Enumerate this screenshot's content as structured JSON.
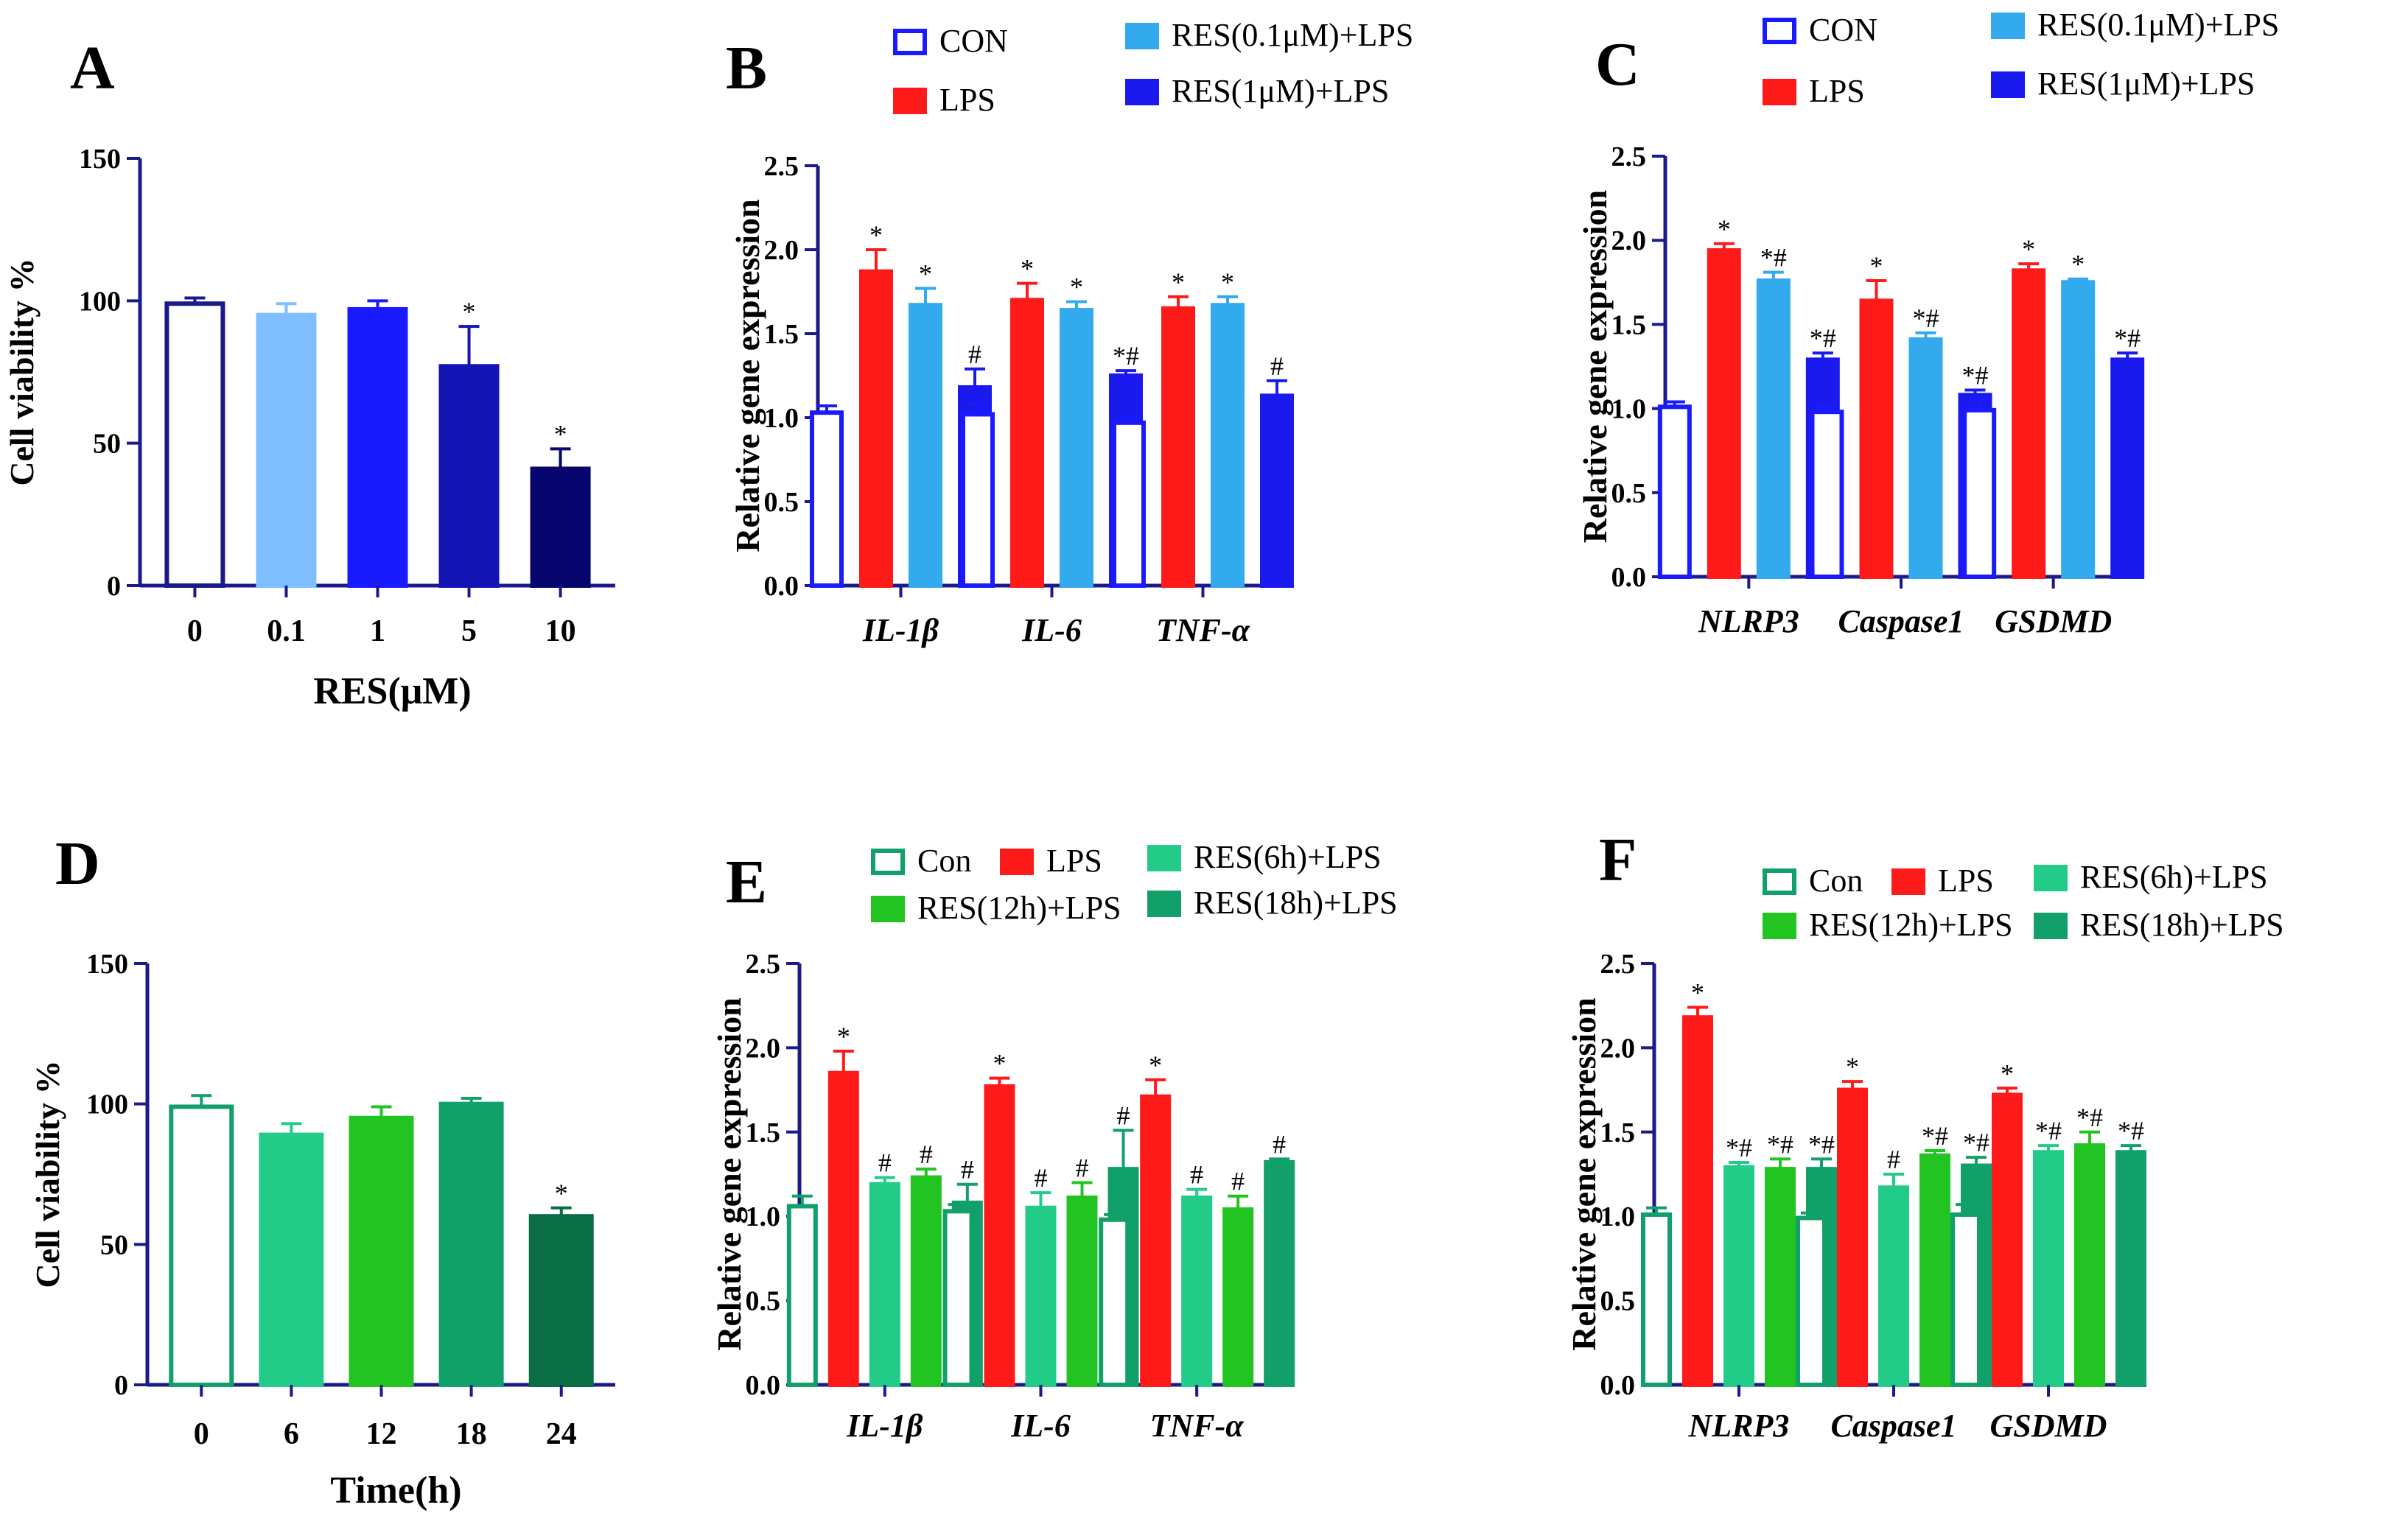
{
  "chart_data": [
    {
      "panel": "A",
      "type": "bar",
      "categories": [
        "0",
        "0.1",
        "1",
        "5",
        "10"
      ],
      "values": [
        99,
        95,
        97,
        77,
        41
      ],
      "errors": [
        2,
        4,
        3,
        14,
        7
      ],
      "annotations": [
        "",
        "",
        "",
        "*",
        "*"
      ],
      "bar_colors": [
        "#ffffff",
        "#7fbfff",
        "#1a1aff",
        "#1414b4",
        "#06066e"
      ],
      "bar_edge": "#1a1a8c",
      "xlabel": "RES(μM)",
      "ylabel": "Cell viability %",
      "ylim": [
        0,
        150
      ],
      "yticks": [
        "0",
        "50",
        "100",
        "150"
      ],
      "axis_color": "#1a1a8c"
    },
    {
      "panel": "B",
      "type": "bar",
      "categories": [
        "IL-1β",
        "IL-6",
        "TNF-α"
      ],
      "series": [
        {
          "name": "CON",
          "values": [
            1.03,
            1.02,
            0.97
          ],
          "errors": [
            0.04,
            0.06,
            0.03
          ],
          "annotations": [
            "",
            "",
            ""
          ],
          "color": "#ffffff",
          "edge": "#1a1aff"
        },
        {
          "name": "LPS",
          "values": [
            1.87,
            1.7,
            1.65
          ],
          "errors": [
            0.13,
            0.1,
            0.07
          ],
          "annotations": [
            "*",
            "*",
            "*"
          ],
          "color": "#ff1a1a",
          "edge": "#ff1a1a"
        },
        {
          "name": "RES(0.1μM)+LPS",
          "values": [
            1.67,
            1.64,
            1.67
          ],
          "errors": [
            0.1,
            0.05,
            0.05
          ],
          "annotations": [
            "*",
            "*",
            "*"
          ],
          "color": "#33aaee",
          "edge": "#33aaee"
        },
        {
          "name": "RES(1μM)+LPS",
          "values": [
            1.18,
            1.25,
            1.13
          ],
          "errors": [
            0.11,
            0.03,
            0.09
          ],
          "annotations": [
            "#",
            "*#",
            "#"
          ],
          "color": "#1a1aee",
          "edge": "#1a1aee"
        }
      ],
      "ylabel": "Relative gene expression",
      "ylim": [
        0,
        2.5
      ],
      "yticks": [
        "0.0",
        "0.5",
        "1.0",
        "1.5",
        "2.0",
        "2.5"
      ],
      "axis_color": "#1a1a8c"
    },
    {
      "panel": "C",
      "type": "bar",
      "categories": [
        "NLRP3",
        "Caspase1",
        "GSDMD"
      ],
      "series": [
        {
          "name": "CON",
          "values": [
            1.01,
            0.98,
            0.99
          ],
          "errors": [
            0.03,
            0.03,
            0.06
          ],
          "annotations": [
            "",
            "",
            ""
          ],
          "color": "#ffffff",
          "edge": "#1a1aff"
        },
        {
          "name": "LPS",
          "values": [
            1.94,
            1.64,
            1.82
          ],
          "errors": [
            0.04,
            0.12,
            0.04
          ],
          "annotations": [
            "*",
            "*",
            "*"
          ],
          "color": "#ff1a1a",
          "edge": "#ff1a1a"
        },
        {
          "name": "RES(0.1μM)+LPS",
          "values": [
            1.76,
            1.41,
            1.75
          ],
          "errors": [
            0.05,
            0.04,
            0.02
          ],
          "annotations": [
            "*#",
            "*#",
            "*"
          ],
          "color": "#33aaee",
          "edge": "#33aaee"
        },
        {
          "name": "RES(1μM)+LPS",
          "values": [
            1.29,
            1.08,
            1.29
          ],
          "errors": [
            0.04,
            0.03,
            0.04
          ],
          "annotations": [
            "*#",
            "*#",
            "*#"
          ],
          "color": "#1a1aee",
          "edge": "#1a1aee"
        }
      ],
      "ylabel": "Relative gene expression",
      "ylim": [
        0,
        2.5
      ],
      "yticks": [
        "0.0",
        "0.5",
        "1.0",
        "1.5",
        "2.0",
        "2.5"
      ],
      "axis_color": "#1a1a8c"
    },
    {
      "panel": "D",
      "type": "bar",
      "categories": [
        "0",
        "6",
        "12",
        "18",
        "24"
      ],
      "values": [
        99,
        89,
        95,
        100,
        60
      ],
      "errors": [
        4,
        4,
        4,
        2,
        3
      ],
      "annotations": [
        "",
        "",
        "",
        "",
        "*"
      ],
      "bar_colors": [
        "#ffffff",
        "#22cc88",
        "#22c422",
        "#11a06a",
        "#0a6e44"
      ],
      "bar_edge": "#11a06a",
      "xlabel": "Time(h)",
      "ylabel": "Cell viability %",
      "ylim": [
        0,
        150
      ],
      "yticks": [
        "0",
        "50",
        "100",
        "150"
      ],
      "axis_color": "#1a1a8c"
    },
    {
      "panel": "E",
      "type": "bar",
      "categories": [
        "IL-1β",
        "IL-6",
        "TNF-α"
      ],
      "series": [
        {
          "name": "Con",
          "values": [
            1.06,
            1.03,
            0.98
          ],
          "errors": [
            0.06,
            0.04,
            0.03
          ],
          "annotations": [
            "",
            "",
            ""
          ],
          "color": "#ffffff",
          "edge": "#11a06a"
        },
        {
          "name": "LPS",
          "values": [
            1.85,
            1.77,
            1.71
          ],
          "errors": [
            0.13,
            0.05,
            0.1
          ],
          "annotations": [
            "*",
            "*",
            "*"
          ],
          "color": "#ff1a1a",
          "edge": "#ff1a1a"
        },
        {
          "name": "RES(6h)+LPS",
          "values": [
            1.19,
            1.05,
            1.11
          ],
          "errors": [
            0.04,
            0.09,
            0.05
          ],
          "annotations": [
            "#",
            "#",
            "#"
          ],
          "color": "#22cc88",
          "edge": "#22cc88"
        },
        {
          "name": "RES(12h)+LPS",
          "values": [
            1.23,
            1.11,
            1.04
          ],
          "errors": [
            0.05,
            0.09,
            0.08
          ],
          "annotations": [
            "#",
            "#",
            "#"
          ],
          "color": "#22c422",
          "edge": "#22c422"
        },
        {
          "name": "RES(18h)+LPS",
          "values": [
            1.08,
            1.28,
            1.32
          ],
          "errors": [
            0.11,
            0.23,
            0.02
          ],
          "annotations": [
            "#",
            "#",
            "#"
          ],
          "color": "#11a06a",
          "edge": "#11a06a"
        }
      ],
      "ylabel": "Relative gene expression",
      "ylim": [
        0,
        2.5
      ],
      "yticks": [
        "0.0",
        "0.5",
        "1.0",
        "1.5",
        "2.0",
        "2.5"
      ],
      "axis_color": "#1a1a8c"
    },
    {
      "panel": "F",
      "type": "bar",
      "categories": [
        "NLRP3",
        "Caspase1",
        "GSDMD"
      ],
      "series": [
        {
          "name": "Con",
          "values": [
            1.01,
            0.99,
            1.01
          ],
          "errors": [
            0.04,
            0.03,
            0.06
          ],
          "annotations": [
            "",
            "",
            ""
          ],
          "color": "#ffffff",
          "edge": "#11a06a"
        },
        {
          "name": "LPS",
          "values": [
            2.18,
            1.75,
            1.72
          ],
          "errors": [
            0.06,
            0.05,
            0.04
          ],
          "annotations": [
            "*",
            "*",
            "*"
          ],
          "color": "#ff1a1a",
          "edge": "#ff1a1a"
        },
        {
          "name": "RES(6h)+LPS",
          "values": [
            1.29,
            1.17,
            1.38
          ],
          "errors": [
            0.03,
            0.08,
            0.04
          ],
          "annotations": [
            "*#",
            "#",
            "*#"
          ],
          "color": "#22cc88",
          "edge": "#22cc88"
        },
        {
          "name": "RES(12h)+LPS",
          "values": [
            1.28,
            1.36,
            1.42
          ],
          "errors": [
            0.06,
            0.03,
            0.08
          ],
          "annotations": [
            "*#",
            "*#",
            "*#"
          ],
          "color": "#22c422",
          "edge": "#22c422"
        },
        {
          "name": "RES(18h)+LPS",
          "values": [
            1.28,
            1.3,
            1.38
          ],
          "errors": [
            0.06,
            0.05,
            0.04
          ],
          "annotations": [
            "*#",
            "*#",
            "*#"
          ],
          "color": "#11a06a",
          "edge": "#11a06a"
        }
      ],
      "ylabel": "Relative gene expression",
      "ylim": [
        0,
        2.5
      ],
      "yticks": [
        "0.0",
        "0.5",
        "1.0",
        "1.5",
        "2.0",
        "2.5"
      ],
      "axis_color": "#1a1a8c"
    }
  ]
}
